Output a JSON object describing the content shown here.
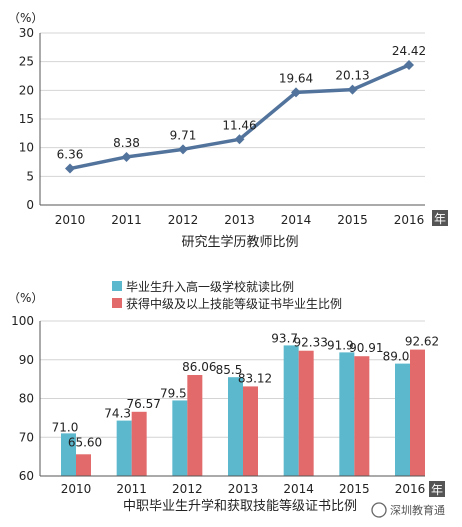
{
  "chart_data": [
    {
      "type": "line",
      "title": "研究生学历教师比例",
      "ylabel": "（%）",
      "x_unit": "年",
      "categories": [
        "2010",
        "2011",
        "2012",
        "2013",
        "2014",
        "2015",
        "2016"
      ],
      "series": [
        {
          "values": [
            6.36,
            8.38,
            9.71,
            11.46,
            19.64,
            20.13,
            24.42
          ],
          "color": "#52739c"
        }
      ],
      "data_labels": [
        "6.36",
        "8.38",
        "9.71",
        "11.46",
        "19.64",
        "20.13",
        "24.42"
      ],
      "yticks": [
        "0",
        "5",
        "10",
        "15",
        "20",
        "25",
        "30"
      ],
      "ylim": [
        0,
        30
      ],
      "grid": true
    },
    {
      "type": "bar",
      "title": "中职毕业生升学和获取技能等级证书比例",
      "ylabel": "（%）",
      "x_unit": "年",
      "legend_position": "top",
      "categories": [
        "2010",
        "2011",
        "2012",
        "2013",
        "2014",
        "2015",
        "2016"
      ],
      "series": [
        {
          "name": "毕业生升入高一级学校就读比例",
          "values": [
            71.0,
            74.3,
            79.5,
            85.5,
            93.7,
            91.9,
            89.0
          ],
          "color": "#5bb8cd",
          "data_labels": [
            "71.0",
            "74.3",
            "79.5",
            "85.5",
            "93.7",
            "91.9",
            "89.0"
          ]
        },
        {
          "name": "获得中级及以上技能等级证书毕业生比例",
          "values": [
            65.6,
            76.57,
            86.06,
            83.12,
            92.33,
            90.91,
            92.62
          ],
          "color": "#e26a6a",
          "data_labels": [
            "65.60",
            "76.57",
            "86.06",
            "83.12",
            "92.33",
            "90.91",
            "92.62"
          ]
        }
      ],
      "yticks": [
        "60",
        "70",
        "80",
        "90",
        "100"
      ],
      "ylim": [
        60,
        100
      ],
      "grid": true
    }
  ],
  "watermark": "深圳教育通"
}
